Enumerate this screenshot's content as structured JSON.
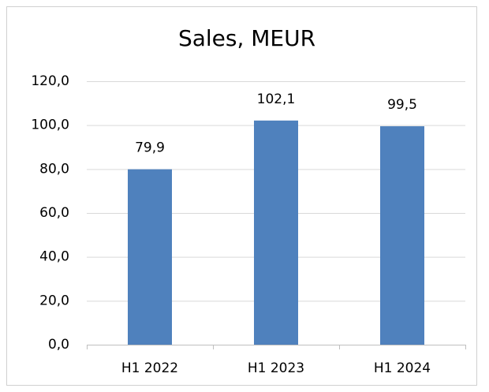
{
  "chart_data": {
    "type": "bar",
    "title": "Sales, MEUR",
    "categories": [
      "H1 2022",
      "H1 2023",
      "H1 2024"
    ],
    "values": [
      79.9,
      102.1,
      99.5
    ],
    "value_labels": [
      "79,9",
      "102,1",
      "99,5"
    ],
    "color": "#4f81bd",
    "ylim": [
      0,
      120
    ],
    "yticks": [
      {
        "value": 0,
        "label": "0,0"
      },
      {
        "value": 20,
        "label": "20,0"
      },
      {
        "value": 40,
        "label": "40,0"
      },
      {
        "value": 60,
        "label": "60,0"
      },
      {
        "value": 80,
        "label": "80,0"
      },
      {
        "value": 100,
        "label": "100,0"
      },
      {
        "value": 120,
        "label": "120,0"
      }
    ],
    "grid": true
  }
}
